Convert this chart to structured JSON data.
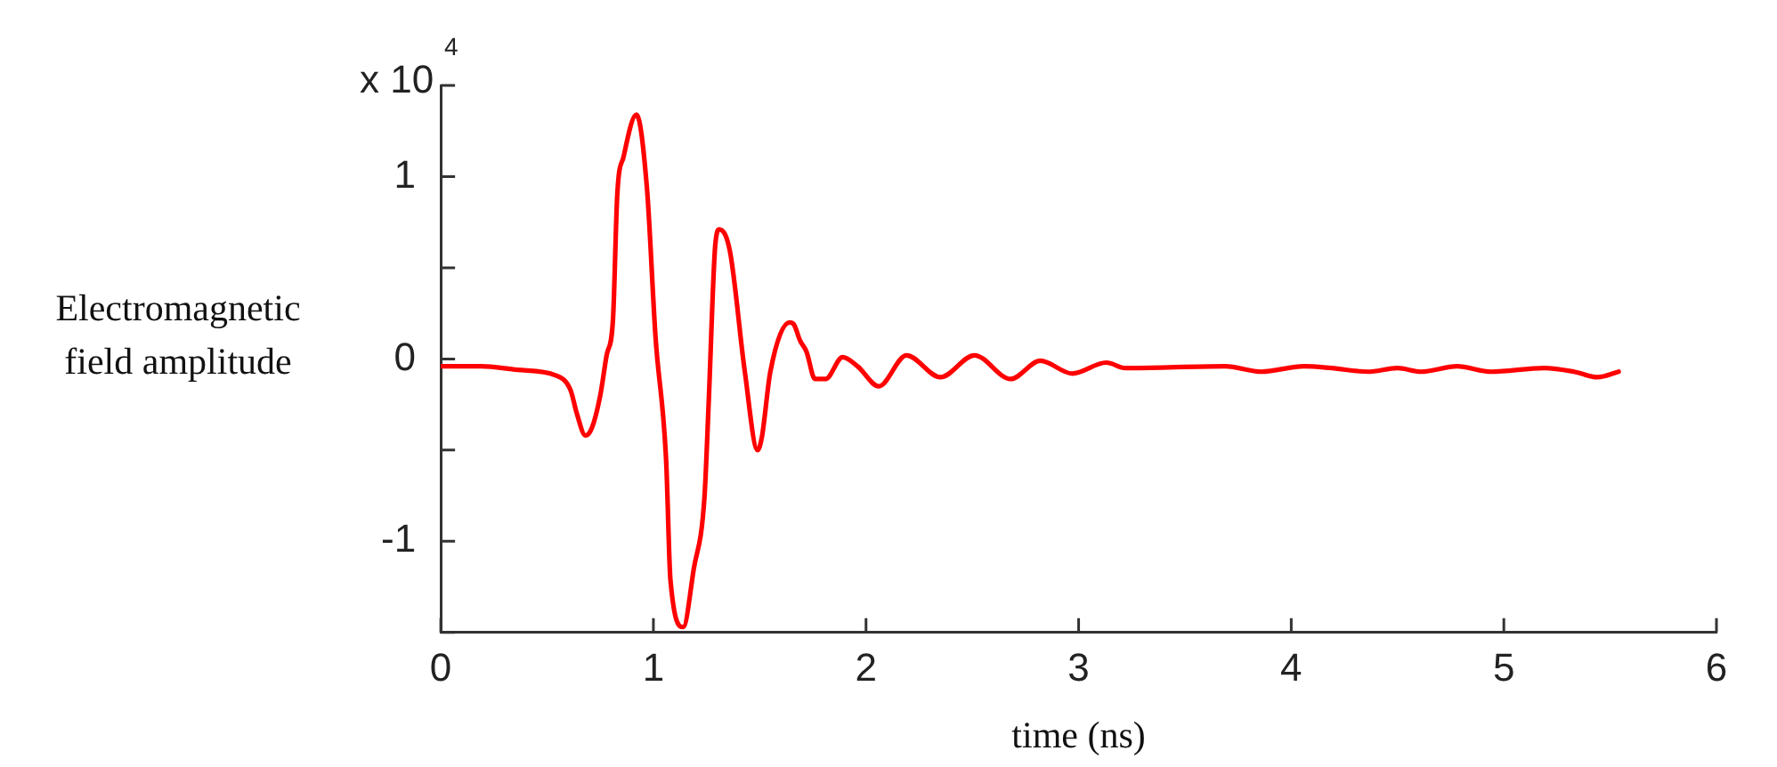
{
  "chart_data": {
    "type": "line",
    "xlabel": "time (ns)",
    "ylabel": "Electromagnetic field amplitude",
    "annotations": [
      "x 10$^{4}$"
    ],
    "x": [
      0,
      0.19,
      0.36,
      0.54,
      0.61,
      0.64,
      0.68,
      0.71,
      0.75,
      0.78,
      0.81,
      0.83,
      0.86,
      0.92,
      0.97,
      1.01,
      1.06,
      1.08,
      1.14,
      1.19,
      1.24,
      1.26,
      1.29,
      1.31,
      1.36,
      1.43,
      1.49,
      1.51,
      1.55,
      1.64,
      1.66,
      1.69,
      1.72,
      1.76,
      1.81,
      1.89,
      1.96,
      2.06,
      2.19,
      2.35,
      2.51,
      2.68,
      2.82,
      2.97,
      3.13,
      3.22,
      3.69,
      3.86,
      4.06,
      4.19,
      4.36,
      4.5,
      4.61,
      4.78,
      4.94,
      5.19,
      5.33,
      5.44,
      5.54
    ],
    "values": [
      -0.04,
      -0.04,
      -0.06,
      -0.09,
      -0.17,
      -0.3,
      -0.42,
      -0.38,
      -0.2,
      0.02,
      0.22,
      0.9,
      1.11,
      1.34,
      0.93,
      0.12,
      -0.56,
      -1.21,
      -1.47,
      -1.15,
      -0.76,
      -0.24,
      0.61,
      0.71,
      0.59,
      -0.07,
      -0.5,
      -0.43,
      -0.07,
      0.2,
      0.19,
      0.1,
      0.04,
      -0.11,
      -0.11,
      0.01,
      -0.04,
      -0.15,
      0.02,
      -0.1,
      0.02,
      -0.11,
      -0.01,
      -0.08,
      -0.02,
      -0.05,
      -0.04,
      -0.07,
      -0.04,
      -0.05,
      -0.07,
      -0.05,
      -0.07,
      -0.04,
      -0.07,
      -0.05,
      -0.07,
      -0.1,
      -0.07
    ],
    "color": "#ff0000",
    "xlim": [
      0,
      6
    ],
    "xticks": [
      0,
      1,
      2,
      3,
      4,
      5,
      6
    ],
    "ylim": [
      -1.5,
      1.5
    ],
    "yticks": [
      {
        "value": -1.5,
        "label": null
      },
      -1,
      {
        "value": -0.5,
        "label": null
      },
      0,
      {
        "value": 0.5,
        "label": null
      },
      1,
      {
        "value": 1.5,
        "label": null
      }
    ],
    "grid": false,
    "legend": false,
    "marker": "none",
    "line_style": "solid"
  }
}
